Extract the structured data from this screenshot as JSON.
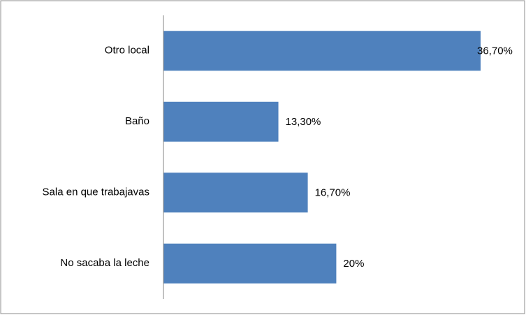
{
  "chart_data": {
    "type": "bar",
    "orientation": "horizontal",
    "categories": [
      "Otro local",
      "Baño",
      "Sala en que trabajavas",
      "No sacaba la leche"
    ],
    "values": [
      36.7,
      13.3,
      16.7,
      20
    ],
    "value_labels": [
      "36,70%",
      "13,30%",
      "16,70%",
      "20%"
    ],
    "color": "#4f81bd"
  }
}
